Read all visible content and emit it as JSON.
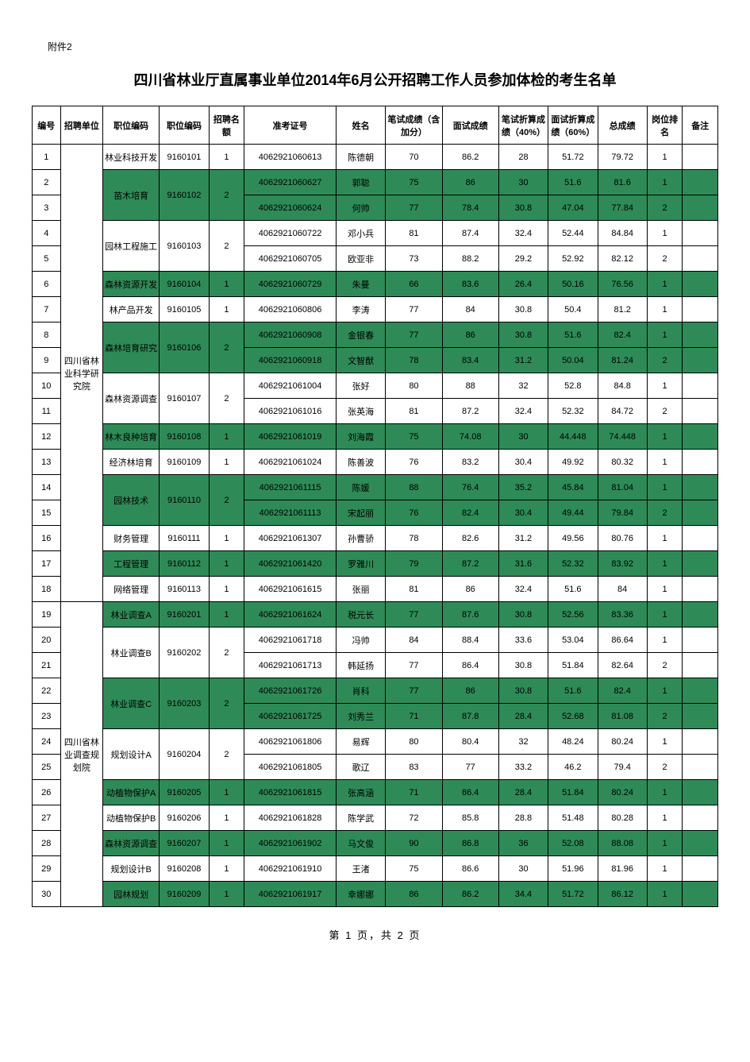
{
  "attachment": "附件2",
  "title": "四川省林业厅直属事业单位2014年6月公开招聘工作人员参加体检的考生名单",
  "footer": "第 1 页，共 2 页",
  "colors": {
    "shaded": "#2e8b57",
    "white": "#ffffff",
    "border": "#000000"
  },
  "columns": [
    "编号",
    "招聘单位",
    "职位编码",
    "职位编码",
    "招聘名额",
    "准考证号",
    "姓名",
    "笔试成绩（含加分）",
    "面试成绩",
    "笔试折算成绩（40%）",
    "面试折算成绩（60%）",
    "总成绩",
    "岗位排名",
    "备注"
  ],
  "unitGroups": [
    {
      "startRow": 1,
      "endRow": 18,
      "label": "四川省林业科学研究院"
    },
    {
      "startRow": 19,
      "endRow": 30,
      "label": "四川省林业调查规划院"
    }
  ],
  "positionGroups": [
    {
      "startRow": 1,
      "endRow": 1,
      "label": "林业科技开发",
      "code": "9160101",
      "quota": "1",
      "shaded": false
    },
    {
      "startRow": 2,
      "endRow": 3,
      "label": "苗木培育",
      "code": "9160102",
      "quota": "2",
      "shaded": true
    },
    {
      "startRow": 4,
      "endRow": 5,
      "label": "园林工程施工",
      "code": "9160103",
      "quota": "2",
      "shaded": false
    },
    {
      "startRow": 6,
      "endRow": 6,
      "label": "森林资源开发",
      "code": "9160104",
      "quota": "1",
      "shaded": true
    },
    {
      "startRow": 7,
      "endRow": 7,
      "label": "林产品开发",
      "code": "9160105",
      "quota": "1",
      "shaded": false
    },
    {
      "startRow": 8,
      "endRow": 9,
      "label": "森林培育研究",
      "code": "9160106",
      "quota": "2",
      "shaded": true
    },
    {
      "startRow": 10,
      "endRow": 11,
      "label": "森林资源调查",
      "code": "9160107",
      "quota": "2",
      "shaded": false
    },
    {
      "startRow": 12,
      "endRow": 12,
      "label": "林木良种培育",
      "code": "9160108",
      "quota": "1",
      "shaded": true
    },
    {
      "startRow": 13,
      "endRow": 13,
      "label": "经济林培育",
      "code": "9160109",
      "quota": "1",
      "shaded": false
    },
    {
      "startRow": 14,
      "endRow": 15,
      "label": "园林技术",
      "code": "9160110",
      "quota": "2",
      "shaded": true
    },
    {
      "startRow": 16,
      "endRow": 16,
      "label": "财务管理",
      "code": "9160111",
      "quota": "1",
      "shaded": false
    },
    {
      "startRow": 17,
      "endRow": 17,
      "label": "工程管理",
      "code": "9160112",
      "quota": "1",
      "shaded": true
    },
    {
      "startRow": 18,
      "endRow": 18,
      "label": "网络管理",
      "code": "9160113",
      "quota": "1",
      "shaded": false
    },
    {
      "startRow": 19,
      "endRow": 19,
      "label": "林业调查A",
      "code": "9160201",
      "quota": "1",
      "shaded": true
    },
    {
      "startRow": 20,
      "endRow": 21,
      "label": "林业调查B",
      "code": "9160202",
      "quota": "2",
      "shaded": false
    },
    {
      "startRow": 22,
      "endRow": 23,
      "label": "林业调查C",
      "code": "9160203",
      "quota": "2",
      "shaded": true
    },
    {
      "startRow": 24,
      "endRow": 25,
      "label": "规划设计A",
      "code": "9160204",
      "quota": "2",
      "shaded": false
    },
    {
      "startRow": 26,
      "endRow": 26,
      "label": "动植物保护A",
      "code": "9160205",
      "quota": "1",
      "shaded": true
    },
    {
      "startRow": 27,
      "endRow": 27,
      "label": "动植物保护B",
      "code": "9160206",
      "quota": "1",
      "shaded": false
    },
    {
      "startRow": 28,
      "endRow": 28,
      "label": "森林资源调查",
      "code": "9160207",
      "quota": "1",
      "shaded": true
    },
    {
      "startRow": 29,
      "endRow": 29,
      "label": "规划设计B",
      "code": "9160208",
      "quota": "1",
      "shaded": false
    },
    {
      "startRow": 30,
      "endRow": 30,
      "label": "园林规划",
      "code": "9160209",
      "quota": "1",
      "shaded": true
    }
  ],
  "rows": [
    {
      "n": "1",
      "exam": "4062921060613",
      "name": "陈德朝",
      "w": "70",
      "i": "86.2",
      "wc": "28",
      "ic": "51.72",
      "t": "79.72",
      "r": "1",
      "note": "",
      "shaded": false
    },
    {
      "n": "2",
      "exam": "4062921060627",
      "name": "郭聪",
      "w": "75",
      "i": "86",
      "wc": "30",
      "ic": "51.6",
      "t": "81.6",
      "r": "1",
      "note": "",
      "shaded": true
    },
    {
      "n": "3",
      "exam": "4062921060624",
      "name": "何帅",
      "w": "77",
      "i": "78.4",
      "wc": "30.8",
      "ic": "47.04",
      "t": "77.84",
      "r": "2",
      "note": "",
      "shaded": true
    },
    {
      "n": "4",
      "exam": "4062921060722",
      "name": "邓小兵",
      "w": "81",
      "i": "87.4",
      "wc": "32.4",
      "ic": "52.44",
      "t": "84.84",
      "r": "1",
      "note": "",
      "shaded": false
    },
    {
      "n": "5",
      "exam": "4062921060705",
      "name": "欧亚非",
      "w": "73",
      "i": "88.2",
      "wc": "29.2",
      "ic": "52.92",
      "t": "82.12",
      "r": "2",
      "note": "",
      "shaded": false
    },
    {
      "n": "6",
      "exam": "4062921060729",
      "name": "朱曼",
      "w": "66",
      "i": "83.6",
      "wc": "26.4",
      "ic": "50.16",
      "t": "76.56",
      "r": "1",
      "note": "",
      "shaded": true
    },
    {
      "n": "7",
      "exam": "4062921060806",
      "name": "李涛",
      "w": "77",
      "i": "84",
      "wc": "30.8",
      "ic": "50.4",
      "t": "81.2",
      "r": "1",
      "note": "",
      "shaded": false
    },
    {
      "n": "8",
      "exam": "4062921060908",
      "name": "金银春",
      "w": "77",
      "i": "86",
      "wc": "30.8",
      "ic": "51.6",
      "t": "82.4",
      "r": "1",
      "note": "",
      "shaded": true
    },
    {
      "n": "9",
      "exam": "4062921060918",
      "name": "文智猷",
      "w": "78",
      "i": "83.4",
      "wc": "31.2",
      "ic": "50.04",
      "t": "81.24",
      "r": "2",
      "note": "",
      "shaded": true
    },
    {
      "n": "10",
      "exam": "4062921061004",
      "name": "张好",
      "w": "80",
      "i": "88",
      "wc": "32",
      "ic": "52.8",
      "t": "84.8",
      "r": "1",
      "note": "",
      "shaded": false
    },
    {
      "n": "11",
      "exam": "4062921061016",
      "name": "张英海",
      "w": "81",
      "i": "87.2",
      "wc": "32.4",
      "ic": "52.32",
      "t": "84.72",
      "r": "2",
      "note": "",
      "shaded": false
    },
    {
      "n": "12",
      "exam": "4062921061019",
      "name": "刘海霞",
      "w": "75",
      "i": "74.08",
      "wc": "30",
      "ic": "44.448",
      "t": "74.448",
      "r": "1",
      "note": "",
      "shaded": true
    },
    {
      "n": "13",
      "exam": "4062921061024",
      "name": "陈善波",
      "w": "76",
      "i": "83.2",
      "wc": "30.4",
      "ic": "49.92",
      "t": "80.32",
      "r": "1",
      "note": "",
      "shaded": false
    },
    {
      "n": "14",
      "exam": "4062921061115",
      "name": "陈媛",
      "w": "88",
      "i": "76.4",
      "wc": "35.2",
      "ic": "45.84",
      "t": "81.04",
      "r": "1",
      "note": "",
      "shaded": true
    },
    {
      "n": "15",
      "exam": "4062921061113",
      "name": "宋起丽",
      "w": "76",
      "i": "82.4",
      "wc": "30.4",
      "ic": "49.44",
      "t": "79.84",
      "r": "2",
      "note": "",
      "shaded": true
    },
    {
      "n": "16",
      "exam": "4062921061307",
      "name": "孙曹骄",
      "w": "78",
      "i": "82.6",
      "wc": "31.2",
      "ic": "49.56",
      "t": "80.76",
      "r": "1",
      "note": "",
      "shaded": false
    },
    {
      "n": "17",
      "exam": "4062921061420",
      "name": "罗雅川",
      "w": "79",
      "i": "87.2",
      "wc": "31.6",
      "ic": "52.32",
      "t": "83.92",
      "r": "1",
      "note": "",
      "shaded": true
    },
    {
      "n": "18",
      "exam": "4062921061615",
      "name": "张丽",
      "w": "81",
      "i": "86",
      "wc": "32.4",
      "ic": "51.6",
      "t": "84",
      "r": "1",
      "note": "",
      "shaded": false
    },
    {
      "n": "19",
      "exam": "4062921061624",
      "name": "税元长",
      "w": "77",
      "i": "87.6",
      "wc": "30.8",
      "ic": "52.56",
      "t": "83.36",
      "r": "1",
      "note": "",
      "shaded": true
    },
    {
      "n": "20",
      "exam": "4062921061718",
      "name": "冯帅",
      "w": "84",
      "i": "88.4",
      "wc": "33.6",
      "ic": "53.04",
      "t": "86.64",
      "r": "1",
      "note": "",
      "shaded": false
    },
    {
      "n": "21",
      "exam": "4062921061713",
      "name": "韩延扬",
      "w": "77",
      "i": "86.4",
      "wc": "30.8",
      "ic": "51.84",
      "t": "82.64",
      "r": "2",
      "note": "",
      "shaded": false
    },
    {
      "n": "22",
      "exam": "4062921061726",
      "name": "肖科",
      "w": "77",
      "i": "86",
      "wc": "30.8",
      "ic": "51.6",
      "t": "82.4",
      "r": "1",
      "note": "",
      "shaded": true
    },
    {
      "n": "23",
      "exam": "4062921061725",
      "name": "刘秀兰",
      "w": "71",
      "i": "87.8",
      "wc": "28.4",
      "ic": "52.68",
      "t": "81.08",
      "r": "2",
      "note": "",
      "shaded": true
    },
    {
      "n": "24",
      "exam": "4062921061806",
      "name": "易辉",
      "w": "80",
      "i": "80.4",
      "wc": "32",
      "ic": "48.24",
      "t": "80.24",
      "r": "1",
      "note": "",
      "shaded": false
    },
    {
      "n": "25",
      "exam": "4062921061805",
      "name": "歌辽",
      "w": "83",
      "i": "77",
      "wc": "33.2",
      "ic": "46.2",
      "t": "79.4",
      "r": "2",
      "note": "",
      "shaded": false
    },
    {
      "n": "26",
      "exam": "4062921061815",
      "name": "张高涵",
      "w": "71",
      "i": "86.4",
      "wc": "28.4",
      "ic": "51.84",
      "t": "80.24",
      "r": "1",
      "note": "",
      "shaded": true
    },
    {
      "n": "27",
      "exam": "4062921061828",
      "name": "陈学武",
      "w": "72",
      "i": "85.8",
      "wc": "28.8",
      "ic": "51.48",
      "t": "80.28",
      "r": "1",
      "note": "",
      "shaded": false
    },
    {
      "n": "28",
      "exam": "4062921061902",
      "name": "马文俊",
      "w": "90",
      "i": "86.8",
      "wc": "36",
      "ic": "52.08",
      "t": "88.08",
      "r": "1",
      "note": "",
      "shaded": true
    },
    {
      "n": "29",
      "exam": "4062921061910",
      "name": "王渚",
      "w": "75",
      "i": "86.6",
      "wc": "30",
      "ic": "51.96",
      "t": "81.96",
      "r": "1",
      "note": "",
      "shaded": false
    },
    {
      "n": "30",
      "exam": "4062921061917",
      "name": "幸娜娜",
      "w": "86",
      "i": "86.2",
      "wc": "34.4",
      "ic": "51.72",
      "t": "86.12",
      "r": "1",
      "note": "",
      "shaded": true
    }
  ]
}
